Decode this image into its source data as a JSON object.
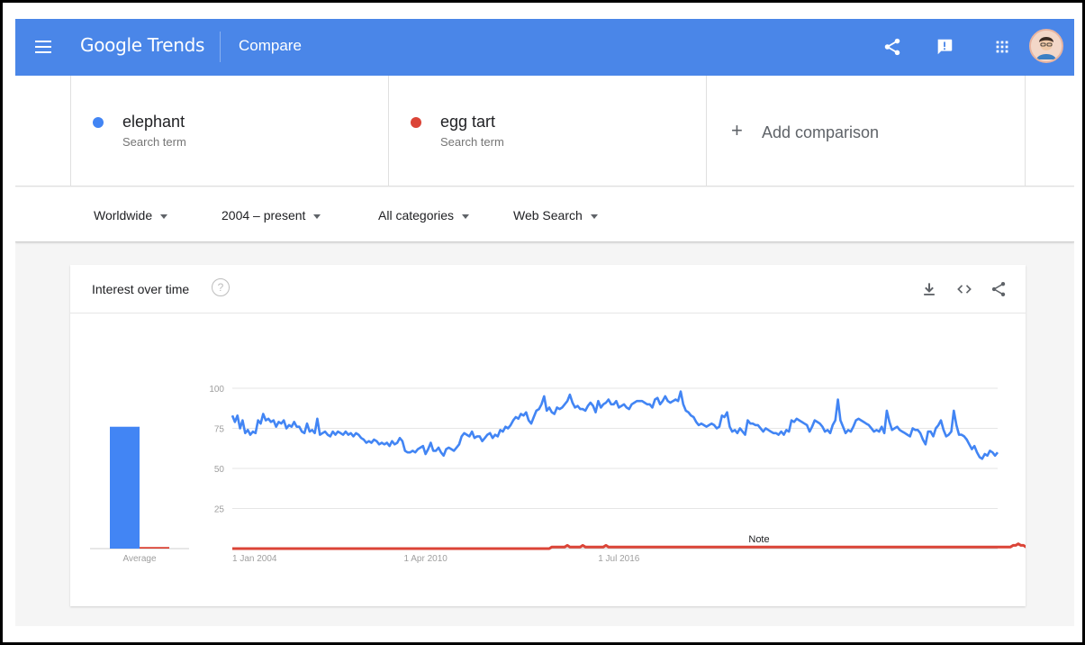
{
  "header": {
    "logo": "Google Trends",
    "page_name": "Compare",
    "icons": [
      "menu-icon",
      "share-icon",
      "feedback-icon",
      "apps-icon",
      "avatar"
    ],
    "brand_color": "#4a86e8"
  },
  "terms": [
    {
      "name": "elephant",
      "subtitle": "Search term",
      "color": "#4285f4"
    },
    {
      "name": "egg tart",
      "subtitle": "Search term",
      "color": "#db4437"
    }
  ],
  "add_comparison": {
    "icon": "plus-icon",
    "label": "Add comparison"
  },
  "filters": {
    "region": "Worldwide",
    "time": "2004 – present",
    "category": "All categories",
    "search_type": "Web Search"
  },
  "card": {
    "title": "Interest over time",
    "help": "?",
    "icons": [
      "download-icon",
      "embed-icon",
      "share-icon"
    ]
  },
  "chart_data": {
    "type": "line",
    "ylim": [
      0,
      100
    ],
    "y_ticks": [
      100,
      75,
      50,
      25
    ],
    "x_ticks": [
      "1 Jan 2004",
      "1 Apr 2010",
      "1 Jul 2016"
    ],
    "annotation": "Note",
    "average": {
      "label": "Average",
      "values": [
        76,
        1
      ],
      "color": "#4285f4"
    },
    "x_start": "2004-01",
    "series": [
      {
        "name": "elephant",
        "color": "#4285f4",
        "values": [
          83,
          79,
          83,
          75,
          80,
          72,
          74,
          71,
          73,
          72,
          80,
          78,
          84,
          80,
          81,
          79,
          80,
          76,
          79,
          78,
          80,
          75,
          77,
          76,
          79,
          76,
          76,
          73,
          72,
          78,
          73,
          74,
          72,
          81,
          71,
          72,
          73,
          71,
          70,
          73,
          71,
          73,
          72,
          71,
          73,
          71,
          72,
          70,
          72,
          71,
          69,
          68,
          66,
          67,
          66,
          68,
          67,
          65,
          66,
          65,
          66,
          64,
          67,
          65,
          66,
          69,
          67,
          61,
          60,
          60,
          61,
          60,
          62,
          63,
          64,
          59,
          62,
          66,
          61,
          61,
          63,
          60,
          58,
          62,
          63,
          62,
          61,
          63,
          65,
          70,
          72,
          71,
          70,
          73,
          69,
          70,
          70,
          67,
          69,
          71,
          72,
          69,
          71,
          70,
          74,
          73,
          76,
          75,
          77,
          80,
          82,
          81,
          84,
          83,
          85,
          80,
          78,
          82,
          86,
          87,
          90,
          95,
          86,
          88,
          85,
          84,
          88,
          87,
          88,
          90,
          92,
          96,
          91,
          88,
          89,
          87,
          87,
          86,
          89,
          91,
          89,
          85,
          92,
          88,
          90,
          91,
          93,
          90,
          90,
          92,
          88,
          89,
          90,
          88,
          87,
          90,
          91,
          92,
          92,
          92,
          91,
          90,
          90,
          88,
          93,
          94,
          90,
          92,
          95,
          92,
          91,
          92,
          93,
          92,
          98,
          90,
          86,
          85,
          83,
          82,
          79,
          77,
          78,
          77,
          76,
          77,
          78,
          77,
          75,
          76,
          83,
          82,
          85,
          76,
          73,
          74,
          72,
          75,
          73,
          71,
          80,
          78,
          78,
          77,
          77,
          75,
          73,
          75,
          74,
          73,
          72,
          72,
          71,
          73,
          71,
          74,
          73,
          80,
          79,
          81,
          80,
          79,
          78,
          77,
          73,
          76,
          80,
          79,
          78,
          76,
          73,
          74,
          72,
          77,
          80,
          93,
          80,
          76,
          72,
          74,
          73,
          76,
          80,
          81,
          80,
          79,
          78,
          77,
          75,
          73,
          74,
          73,
          76,
          72,
          86,
          79,
          74,
          75,
          76,
          74,
          73,
          72,
          71,
          70,
          75,
          74,
          74,
          72,
          68,
          65,
          73,
          73,
          70,
          75,
          77,
          80,
          74,
          70,
          71,
          73,
          86,
          77,
          71,
          71,
          70,
          68,
          65,
          62,
          64,
          60,
          57,
          56,
          59,
          58,
          61,
          60,
          58,
          60
        ]
      },
      {
        "name": "egg tart",
        "color": "#db4437",
        "values": [
          0,
          0,
          0,
          0,
          0,
          0,
          0,
          0,
          0,
          0,
          0,
          0,
          0,
          0,
          0,
          0,
          0,
          0,
          0,
          0,
          0,
          0,
          0,
          0,
          0,
          0,
          0,
          0,
          0,
          0,
          0,
          0,
          0,
          0,
          0,
          0,
          0,
          0,
          0,
          0,
          0,
          0,
          0,
          0,
          0,
          0,
          0,
          0,
          0,
          0,
          0,
          0,
          0,
          0,
          0,
          0,
          0,
          0,
          0,
          0,
          0,
          0,
          0,
          0,
          0,
          0,
          0,
          0,
          0,
          0,
          0,
          0,
          0,
          0,
          0,
          0,
          0,
          0,
          0,
          0,
          0,
          0,
          0,
          0,
          0,
          0,
          0,
          0,
          0,
          0,
          0,
          0,
          0,
          0,
          0,
          0,
          0,
          0,
          0,
          0,
          0,
          0,
          0,
          0,
          0,
          0,
          0,
          0,
          0,
          0,
          0,
          0,
          0,
          0,
          0,
          0,
          0,
          0,
          0,
          0,
          0,
          0,
          0,
          0,
          1,
          1,
          1,
          1,
          1,
          1,
          2,
          1,
          1,
          1,
          1,
          1,
          2,
          1,
          1,
          1,
          1,
          1,
          1,
          1,
          1,
          2,
          1,
          1,
          1,
          1,
          1,
          1,
          1,
          1,
          1,
          1,
          1,
          1,
          1,
          1,
          1,
          1,
          1,
          1,
          1,
          1,
          1,
          1,
          1,
          1,
          1,
          1,
          1,
          1,
          1,
          1,
          1,
          1,
          1,
          1,
          1,
          1,
          1,
          1,
          1,
          1,
          1,
          1,
          1,
          1,
          1,
          1,
          1,
          1,
          1,
          1,
          1,
          1,
          1,
          1,
          1,
          1,
          1,
          1,
          1,
          1,
          1,
          1,
          1,
          1,
          1,
          1,
          1,
          1,
          1,
          1,
          1,
          1,
          1,
          1,
          1,
          1,
          1,
          1,
          1,
          1,
          1,
          1,
          1,
          1,
          1,
          1,
          1,
          1,
          1,
          1,
          1,
          1,
          1,
          1,
          1,
          1,
          1,
          1,
          1,
          1,
          1,
          1,
          1,
          1,
          1,
          1,
          1,
          1,
          1,
          1,
          1,
          1,
          1,
          1,
          1,
          1,
          1,
          1,
          1,
          1,
          1,
          1,
          1,
          1,
          1,
          1,
          1,
          1,
          1,
          1,
          1,
          1,
          1,
          1,
          1,
          1,
          1,
          1,
          1,
          1,
          1,
          1,
          1,
          1,
          1,
          1,
          1,
          1,
          1,
          1,
          1,
          1,
          1,
          1,
          1,
          1,
          1,
          2,
          2,
          3,
          2,
          2,
          1,
          1,
          1,
          1,
          1,
          1,
          1,
          1,
          1,
          1,
          1,
          1,
          1,
          1,
          1,
          1,
          1
        ]
      }
    ]
  }
}
